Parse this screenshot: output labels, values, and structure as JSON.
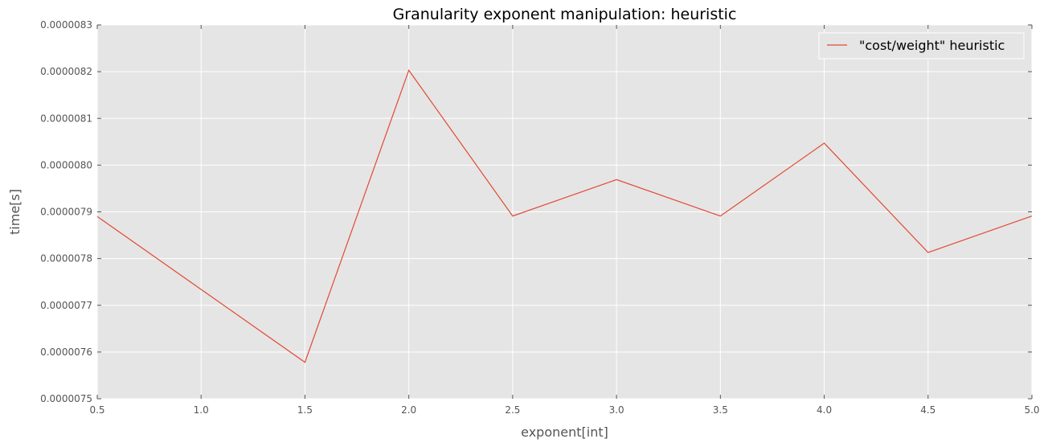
{
  "chart_data": {
    "type": "line",
    "title": "Granularity exponent manipulation: heuristic",
    "xlabel": "exponent[int]",
    "ylabel": "time[s]",
    "xlim": [
      0.5,
      5.0
    ],
    "ylim": [
      7.5e-06,
      8.3e-06
    ],
    "x_ticks": [
      "0.5",
      "1.0",
      "1.5",
      "2.0",
      "2.5",
      "3.0",
      "3.5",
      "4.0",
      "4.5",
      "5.0"
    ],
    "y_ticks": [
      "0.0000075",
      "0.0000076",
      "0.0000077",
      "0.0000078",
      "0.0000079",
      "0.0000080",
      "0.0000081",
      "0.0000082",
      "0.0000083"
    ],
    "grid": true,
    "legend_position": "top-right",
    "series": [
      {
        "name": "\"cost/weight\" heuristic",
        "color": "#e24a33",
        "x": [
          0.5,
          1.5,
          2.0,
          2.5,
          3.0,
          3.5,
          4.0,
          4.5,
          5.0
        ],
        "y": [
          7.89e-06,
          7.578e-06,
          8.203e-06,
          7.891e-06,
          7.969e-06,
          7.891e-06,
          8.047e-06,
          7.813e-06,
          7.891e-06
        ]
      }
    ]
  },
  "colors": {
    "plot_background": "#e5e5e5",
    "grid": "#ffffff",
    "tick_text": "#555555"
  }
}
